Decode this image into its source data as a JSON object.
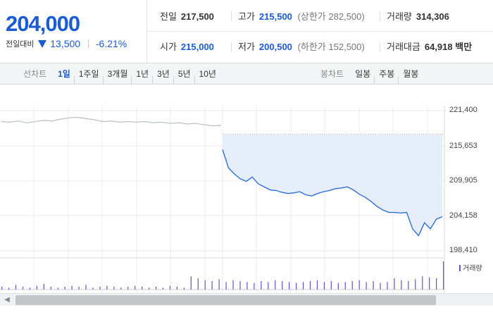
{
  "quote": {
    "price": "204,000",
    "change_label": "전일대비",
    "change_value": "13,500",
    "change_pct": "-6.21%",
    "prev_close": {
      "label": "전일",
      "value": "217,500"
    },
    "high": {
      "label": "고가",
      "value": "215,500",
      "limit_label": "(상한가",
      "limit_value": "282,500)"
    },
    "volume": {
      "label": "거래량",
      "value": "314,306"
    },
    "open": {
      "label": "시가",
      "value": "215,000"
    },
    "low": {
      "label": "저가",
      "value": "200,500",
      "limit_label": "(하한가",
      "limit_value": "152,500)"
    },
    "trade_amount": {
      "label": "거래대금",
      "value": "64,918",
      "unit": "백만"
    }
  },
  "tabs": {
    "line_title": "선차트",
    "line_periods": [
      "1일",
      "1주일",
      "3개월",
      "1년",
      "3년",
      "5년",
      "10년"
    ],
    "active_period": "1일",
    "candle_title": "봉차트",
    "candle_periods": [
      "일봉",
      "주봉",
      "월봉"
    ]
  },
  "colors": {
    "accent": "#1a5bd6",
    "price_line": "#2f6fd8",
    "area_fill": "#e6eefb",
    "prev_line": "#b8bcc2",
    "volume_bar": "#6b4fc8"
  },
  "chart_data": {
    "type": "line",
    "y_ticks": [
      "221,400",
      "215,653",
      "209,905",
      "204,158",
      "198,410"
    ],
    "ylim": [
      198410,
      221400
    ],
    "previous_close_ref": 217500,
    "grid": true,
    "volume_legend": "거래량",
    "series": [
      {
        "comment_role": "previous day intraday",
        "values": [
          219600,
          219500,
          219700,
          219400,
          219600,
          219800,
          219700,
          220000,
          220200,
          220300,
          220100,
          219900,
          219600,
          219700,
          219500,
          219600,
          219500,
          219600,
          219400,
          219500,
          219300,
          219400,
          219200,
          219300,
          219100,
          218900,
          219000
        ]
      },
      {
        "comment_role": "today intraday",
        "values": [
          215000,
          212000,
          211000,
          210200,
          209800,
          210500,
          209400,
          208900,
          208400,
          208300,
          208000,
          207800,
          207900,
          208100,
          207600,
          207400,
          207800,
          208100,
          208300,
          208600,
          208700,
          208900,
          208400,
          207700,
          207200,
          206500,
          205700,
          205100,
          204700,
          204700,
          204600,
          204700,
          202000,
          200900,
          203000,
          202000,
          203600,
          204000
        ]
      }
    ],
    "volume": [
      3,
      2,
      5,
      3,
      2,
      4,
      6,
      3,
      2,
      3,
      4,
      3,
      5,
      2,
      3,
      4,
      3,
      2,
      3,
      4,
      3,
      2,
      3,
      2,
      4,
      3,
      2,
      14,
      12,
      10,
      9,
      11,
      8,
      10,
      9,
      8,
      7,
      9,
      8,
      10,
      9,
      8,
      7,
      8,
      9,
      10,
      8,
      9,
      7,
      8,
      9,
      10,
      8,
      9,
      7,
      8,
      12,
      10,
      9,
      11,
      14,
      13,
      12,
      30
    ]
  }
}
